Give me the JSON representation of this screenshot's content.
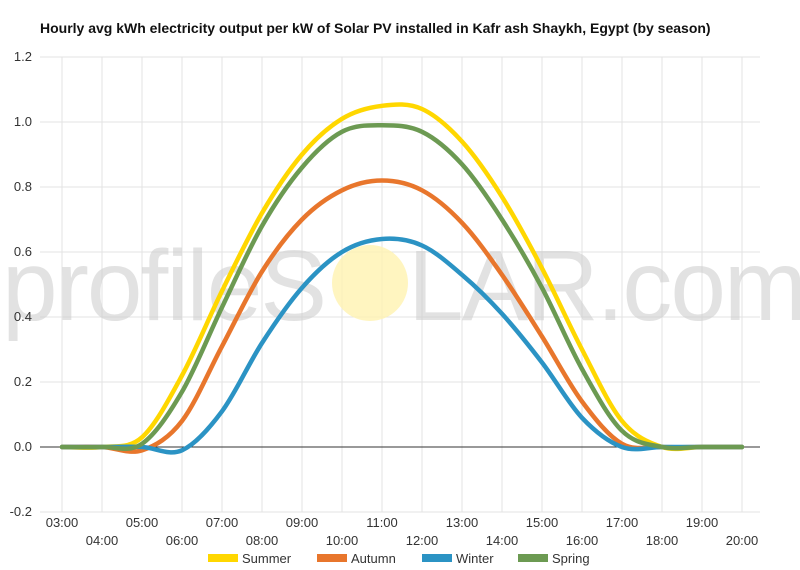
{
  "chart_data": {
    "type": "line",
    "title": "Hourly avg kWh electricity output per kW of Solar PV installed in Kafr ash Shaykh, Egypt (by season)",
    "xlabel": "",
    "ylabel": "",
    "ylim": [
      -0.2,
      1.2
    ],
    "yticks": [
      "-0.2",
      "0.0",
      "0.2",
      "0.4",
      "0.6",
      "0.8",
      "1.0",
      "1.2"
    ],
    "x": [
      "03:00",
      "04:00",
      "05:00",
      "06:00",
      "07:00",
      "08:00",
      "09:00",
      "10:00",
      "11:00",
      "12:00",
      "13:00",
      "14:00",
      "15:00",
      "16:00",
      "17:00",
      "18:00",
      "19:00",
      "20:00"
    ],
    "grid": true,
    "legend_position": "bottom",
    "series": [
      {
        "name": "Summer",
        "color": "#ffd700",
        "values": [
          0.0,
          0.0,
          0.03,
          0.22,
          0.48,
          0.72,
          0.9,
          1.01,
          1.05,
          1.04,
          0.94,
          0.77,
          0.55,
          0.3,
          0.08,
          0.0,
          0.0,
          0.0
        ]
      },
      {
        "name": "Autumn",
        "color": "#e8762c",
        "values": [
          0.0,
          0.0,
          -0.01,
          0.08,
          0.31,
          0.54,
          0.7,
          0.79,
          0.82,
          0.79,
          0.69,
          0.53,
          0.34,
          0.14,
          0.01,
          0.0,
          0.0,
          0.0
        ]
      },
      {
        "name": "Winter",
        "color": "#2b93c4",
        "values": [
          0.0,
          0.0,
          0.0,
          -0.01,
          0.11,
          0.32,
          0.49,
          0.6,
          0.64,
          0.62,
          0.53,
          0.41,
          0.26,
          0.09,
          0.0,
          0.0,
          0.0,
          0.0
        ]
      },
      {
        "name": "Spring",
        "color": "#6c9a52",
        "values": [
          0.0,
          0.0,
          0.01,
          0.17,
          0.43,
          0.68,
          0.86,
          0.97,
          0.99,
          0.97,
          0.87,
          0.7,
          0.49,
          0.24,
          0.05,
          0.0,
          0.0,
          0.0
        ]
      }
    ]
  },
  "watermark": {
    "left": "profileS",
    "right": "LAR.com"
  }
}
